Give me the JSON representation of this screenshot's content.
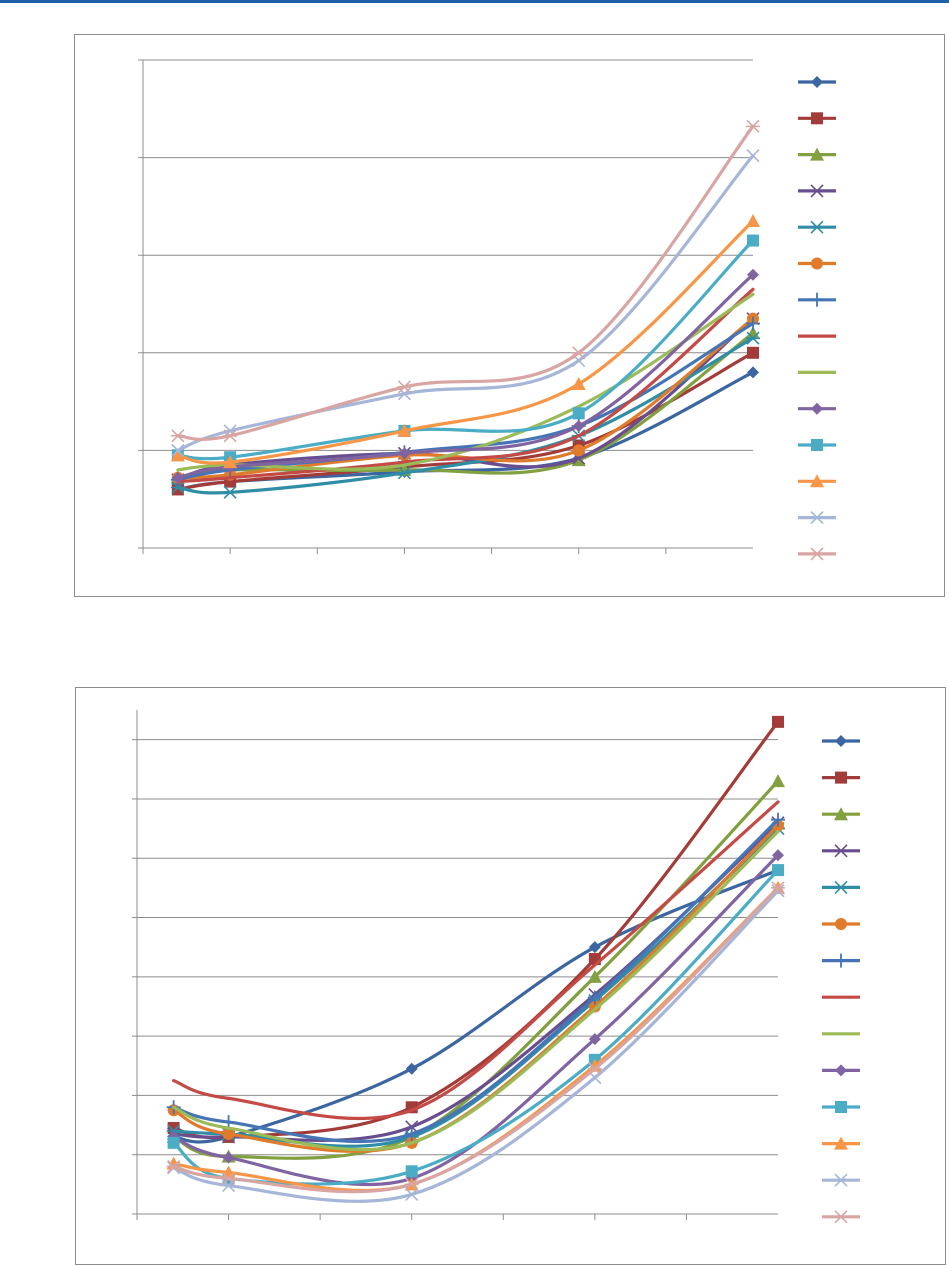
{
  "chart_data": [
    {
      "type": "line",
      "title": "",
      "xlabel": "",
      "ylabel": "",
      "x": [
        0.4,
        1,
        3,
        5,
        7
      ],
      "xlim": [
        0,
        7
      ],
      "ylim": [
        0,
        5
      ],
      "grid": true,
      "legend": "right",
      "series": [
        {
          "color": "#3c66a1",
          "marker": "diamond",
          "values": [
            0.6,
            0.68,
            0.78,
            0.92,
            1.8
          ]
        },
        {
          "color": "#a33c38",
          "marker": "square",
          "values": [
            0.6,
            0.68,
            0.83,
            1.05,
            2.0
          ]
        },
        {
          "color": "#82a03f",
          "marker": "triangle",
          "values": [
            0.72,
            0.8,
            0.8,
            0.9,
            2.2
          ]
        },
        {
          "color": "#694e8f",
          "marker": "x",
          "values": [
            0.7,
            0.85,
            0.97,
            0.92,
            2.35
          ]
        },
        {
          "color": "#2f8ea6",
          "marker": "star",
          "values": [
            0.62,
            0.57,
            0.77,
            1.15,
            2.15
          ]
        },
        {
          "color": "#e07b2b",
          "marker": "circle",
          "values": [
            0.72,
            0.75,
            0.95,
            1.0,
            2.35
          ]
        },
        {
          "color": "#4575b5",
          "marker": "plus",
          "values": [
            0.7,
            0.8,
            0.98,
            1.25,
            2.3
          ]
        },
        {
          "color": "#c44a46",
          "marker": "none",
          "values": [
            0.68,
            0.72,
            0.88,
            1.15,
            2.65
          ]
        },
        {
          "color": "#9bbb59",
          "marker": "none",
          "values": [
            0.8,
            0.85,
            0.85,
            1.45,
            2.6
          ]
        },
        {
          "color": "#8064a2",
          "marker": "diamond",
          "values": [
            0.72,
            0.83,
            0.97,
            1.25,
            2.8
          ]
        },
        {
          "color": "#4bacc6",
          "marker": "square",
          "values": [
            0.95,
            0.93,
            1.2,
            1.38,
            3.15
          ]
        },
        {
          "color": "#f79646",
          "marker": "triangle",
          "values": [
            0.95,
            0.88,
            1.2,
            1.68,
            3.35
          ]
        },
        {
          "color": "#a5b6d8",
          "marker": "x",
          "values": [
            1.0,
            1.2,
            1.58,
            1.92,
            4.02
          ]
        },
        {
          "color": "#d8a5a3",
          "marker": "star",
          "values": [
            1.15,
            1.15,
            1.65,
            2.0,
            4.32
          ]
        }
      ]
    },
    {
      "type": "line",
      "title": "",
      "xlabel": "",
      "ylabel": "",
      "x": [
        0.4,
        1,
        3,
        5,
        7
      ],
      "xlim": [
        0,
        7
      ],
      "ylim": [
        0,
        8.5
      ],
      "grid": true,
      "legend": "right",
      "series": [
        {
          "color": "#3c66a1",
          "marker": "diamond",
          "values": [
            1.3,
            1.3,
            2.45,
            4.5,
            5.8
          ]
        },
        {
          "color": "#a33c38",
          "marker": "square",
          "values": [
            1.45,
            1.3,
            1.8,
            4.3,
            8.3
          ]
        },
        {
          "color": "#82a03f",
          "marker": "triangle",
          "values": [
            1.3,
            0.97,
            1.3,
            4.0,
            7.3
          ]
        },
        {
          "color": "#694e8f",
          "marker": "x",
          "values": [
            1.35,
            1.3,
            1.47,
            3.7,
            6.6
          ]
        },
        {
          "color": "#2f8ea6",
          "marker": "star",
          "values": [
            1.4,
            1.35,
            1.3,
            3.6,
            6.5
          ]
        },
        {
          "color": "#e07b2b",
          "marker": "circle",
          "values": [
            1.75,
            1.35,
            1.2,
            3.5,
            6.55
          ]
        },
        {
          "color": "#4575b5",
          "marker": "plus",
          "values": [
            1.8,
            1.55,
            1.35,
            3.65,
            6.65
          ]
        },
        {
          "color": "#c44a46",
          "marker": "none",
          "values": [
            2.25,
            1.95,
            1.75,
            4.2,
            6.95
          ]
        },
        {
          "color": "#9bbb59",
          "marker": "none",
          "values": [
            1.8,
            1.45,
            1.2,
            3.45,
            6.45
          ]
        },
        {
          "color": "#8064a2",
          "marker": "diamond",
          "values": [
            1.3,
            0.95,
            0.6,
            2.95,
            6.05
          ]
        },
        {
          "color": "#4bacc6",
          "marker": "square",
          "values": [
            1.2,
            0.6,
            0.72,
            2.6,
            5.8
          ]
        },
        {
          "color": "#f79646",
          "marker": "triangle",
          "values": [
            0.85,
            0.7,
            0.5,
            2.5,
            5.5
          ]
        },
        {
          "color": "#a5b6d8",
          "marker": "x",
          "values": [
            0.78,
            0.48,
            0.33,
            2.3,
            5.45
          ]
        },
        {
          "color": "#d8a5a3",
          "marker": "star",
          "values": [
            0.8,
            0.6,
            0.5,
            2.45,
            5.5
          ]
        }
      ]
    }
  ]
}
